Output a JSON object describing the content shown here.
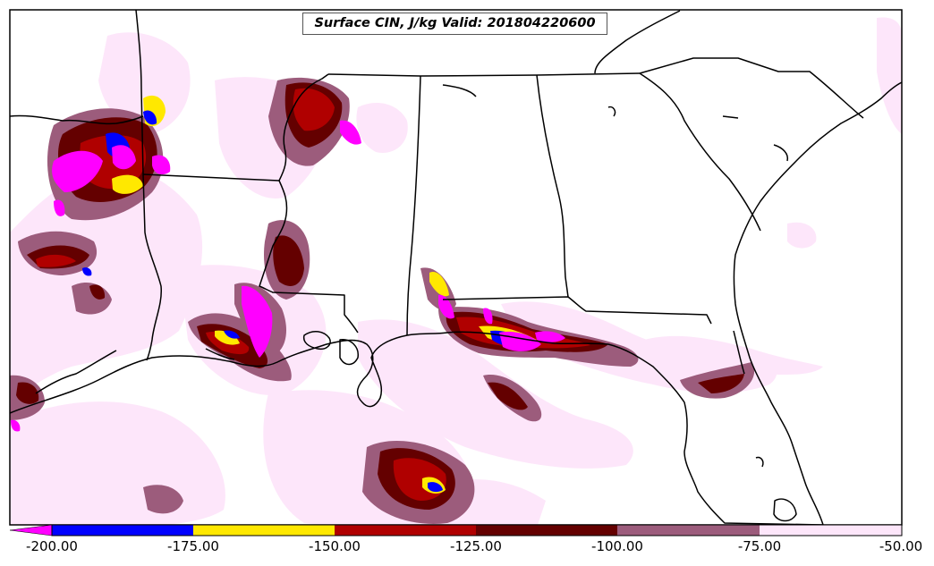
{
  "title": "Surface CIN, J/kg Valid: 201804220600",
  "colorbar": {
    "labels": [
      "-200.00",
      "-175.00",
      "-150.00",
      "-125.00",
      "-100.00",
      "-75.00",
      "-50.00"
    ],
    "colors": [
      "#ff00ff",
      "#0000ff",
      "#ffe800",
      "#b00000",
      "#640000",
      "#9c5c7c",
      "#fde6fa"
    ]
  },
  "map": {
    "background": "#ffffff",
    "boundary_color": "#000000",
    "fill_colors": {
      "lightest": "#fde6fa",
      "mauve": "#9c5c7c",
      "dark_red": "#640000",
      "red": "#b00000",
      "yellow": "#ffe800",
      "blue": "#0000ff",
      "magenta": "#ff00ff"
    }
  }
}
